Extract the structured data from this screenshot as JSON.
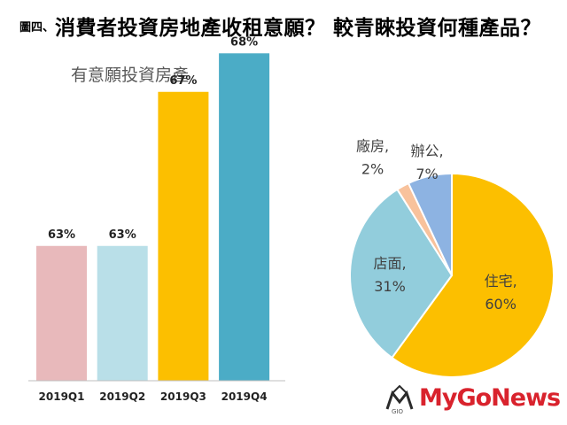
{
  "header": {
    "figure_label": "圖四、",
    "title": "消費者投資房地產收租意願？ 較青睞投資何種產品？"
  },
  "colors": {
    "bar_q1": "#e8b9bb",
    "bar_q2": "#b9dfe8",
    "bar_q3": "#fcbf00",
    "bar_q4": "#4bacc6",
    "pie_residence": "#fcbf00",
    "pie_storefront": "#92cddc",
    "pie_factory": "#f8c29c",
    "pie_office": "#8db3e2",
    "watermark": "#d9232d"
  },
  "chart_data": [
    {
      "type": "bar",
      "title": "有意願投資房產",
      "categories": [
        "2019Q1",
        "2019Q2",
        "2019Q3",
        "2019Q4"
      ],
      "values": [
        63,
        63,
        67,
        68
      ],
      "data_labels": [
        "63%",
        "63%",
        "67%",
        "68%"
      ],
      "unit": "%",
      "grid": false,
      "legend": "none"
    },
    {
      "type": "pie",
      "slices": [
        {
          "label": "住宅,",
          "value": 60,
          "value_label": "60%"
        },
        {
          "label": "店面,",
          "value": 31,
          "value_label": "31%"
        },
        {
          "label": "廠房,",
          "value": 2,
          "value_label": "2%"
        },
        {
          "label": "辦公,",
          "value": 7,
          "value_label": "7%"
        }
      ],
      "legend": "none"
    }
  ],
  "watermark": {
    "text": "MyGoNews",
    "logo_text": "GIO"
  }
}
